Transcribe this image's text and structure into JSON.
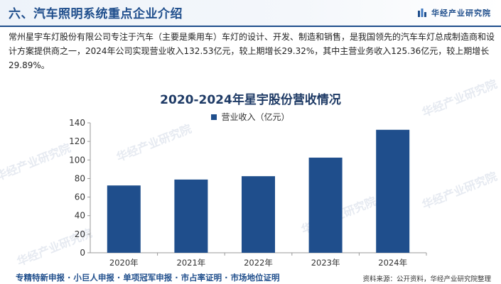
{
  "header": {
    "title": "六、汽车照明系统重点企业介绍",
    "brand_name": "华经产业研究院"
  },
  "intro_text": "常州星宇车灯股份有限公司专注于汽车（主要是乘用车）车灯的设计、开发、制造和销售，是我国领先的汽车车灯总成制造商和设计方案提供商之一，2024年公司实现营业收入132.53亿元，较上期增长29.32%，其中主营业务收入125.36亿元，较上期增长29.89%。",
  "watermark_text": "华经产业研究院",
  "colors": {
    "accent": "#1f4e8c",
    "bar": "#1f4e8c",
    "axis": "#999999"
  },
  "chart_data": {
    "type": "bar",
    "title": "2020-2024年星宇股份营收情况",
    "categories": [
      "2020年",
      "2021年",
      "2022年",
      "2023年",
      "2024年"
    ],
    "series": [
      {
        "name": "营业收入（亿元）",
        "values": [
          72.5,
          78.9,
          82.5,
          102.5,
          132.5
        ]
      }
    ],
    "ylim": [
      0,
      140
    ],
    "yticks": [
      0,
      20,
      40,
      60,
      80,
      100,
      120,
      140
    ],
    "grid": false,
    "legend": "top-center"
  },
  "footer": {
    "services": "专精特新申报 · 小巨人申报 · 单项冠军申报 · 市占率证明 · 市场地位证明",
    "source": "资料来源：公开资料，华经产业研究院整理"
  }
}
